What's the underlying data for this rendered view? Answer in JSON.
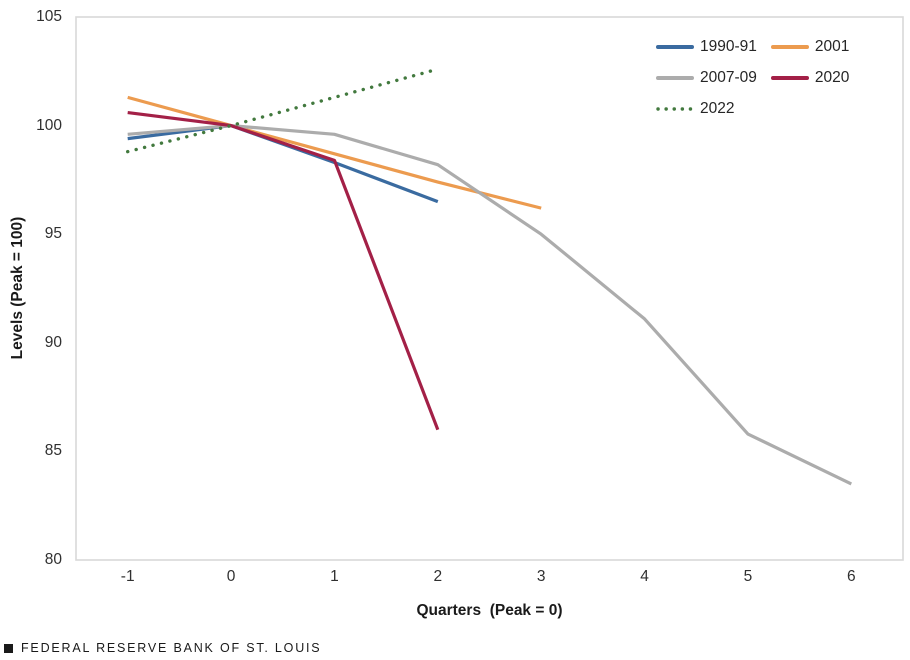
{
  "chart_data": {
    "type": "line",
    "title": "",
    "xlabel": "Quarters  (Peak = 0)",
    "ylabel": "Levels (Peak = 100)",
    "xlim": [
      -1.5,
      6.5
    ],
    "ylim": [
      80,
      105
    ],
    "xticks": [
      -1,
      0,
      1,
      2,
      3,
      4,
      5,
      6
    ],
    "yticks": [
      105,
      100,
      95,
      90,
      85,
      80
    ],
    "grid": false,
    "legend_position": "top-right-inside",
    "plot_border_color": "#d9d9d9",
    "series": [
      {
        "name": "1990-91",
        "color": "#3a6ba0",
        "style": "solid",
        "x": [
          -1,
          0,
          1,
          2
        ],
        "y": [
          99.4,
          100,
          98.3,
          96.5
        ]
      },
      {
        "name": "2001",
        "color": "#ec9b4f",
        "style": "solid",
        "x": [
          -1,
          0,
          1,
          2,
          3
        ],
        "y": [
          101.3,
          100,
          98.7,
          97.4,
          96.2
        ]
      },
      {
        "name": "2007-09",
        "color": "#acacac",
        "style": "solid",
        "x": [
          -1,
          0,
          1,
          2,
          3,
          4,
          5,
          6
        ],
        "y": [
          99.6,
          100,
          99.6,
          98.2,
          95.0,
          91.1,
          85.8,
          83.5
        ]
      },
      {
        "name": "2020",
        "color": "#a32047",
        "style": "solid",
        "x": [
          -1,
          0,
          1,
          2
        ],
        "y": [
          100.6,
          100,
          98.4,
          86.0
        ]
      },
      {
        "name": "2022",
        "color": "#42793e",
        "style": "dotted",
        "x": [
          -1,
          0,
          1,
          2
        ],
        "y": [
          98.8,
          100,
          101.3,
          102.6
        ]
      }
    ]
  },
  "footer": {
    "attribution": "FEDERAL RESERVE BANK OF ST. LOUIS"
  }
}
